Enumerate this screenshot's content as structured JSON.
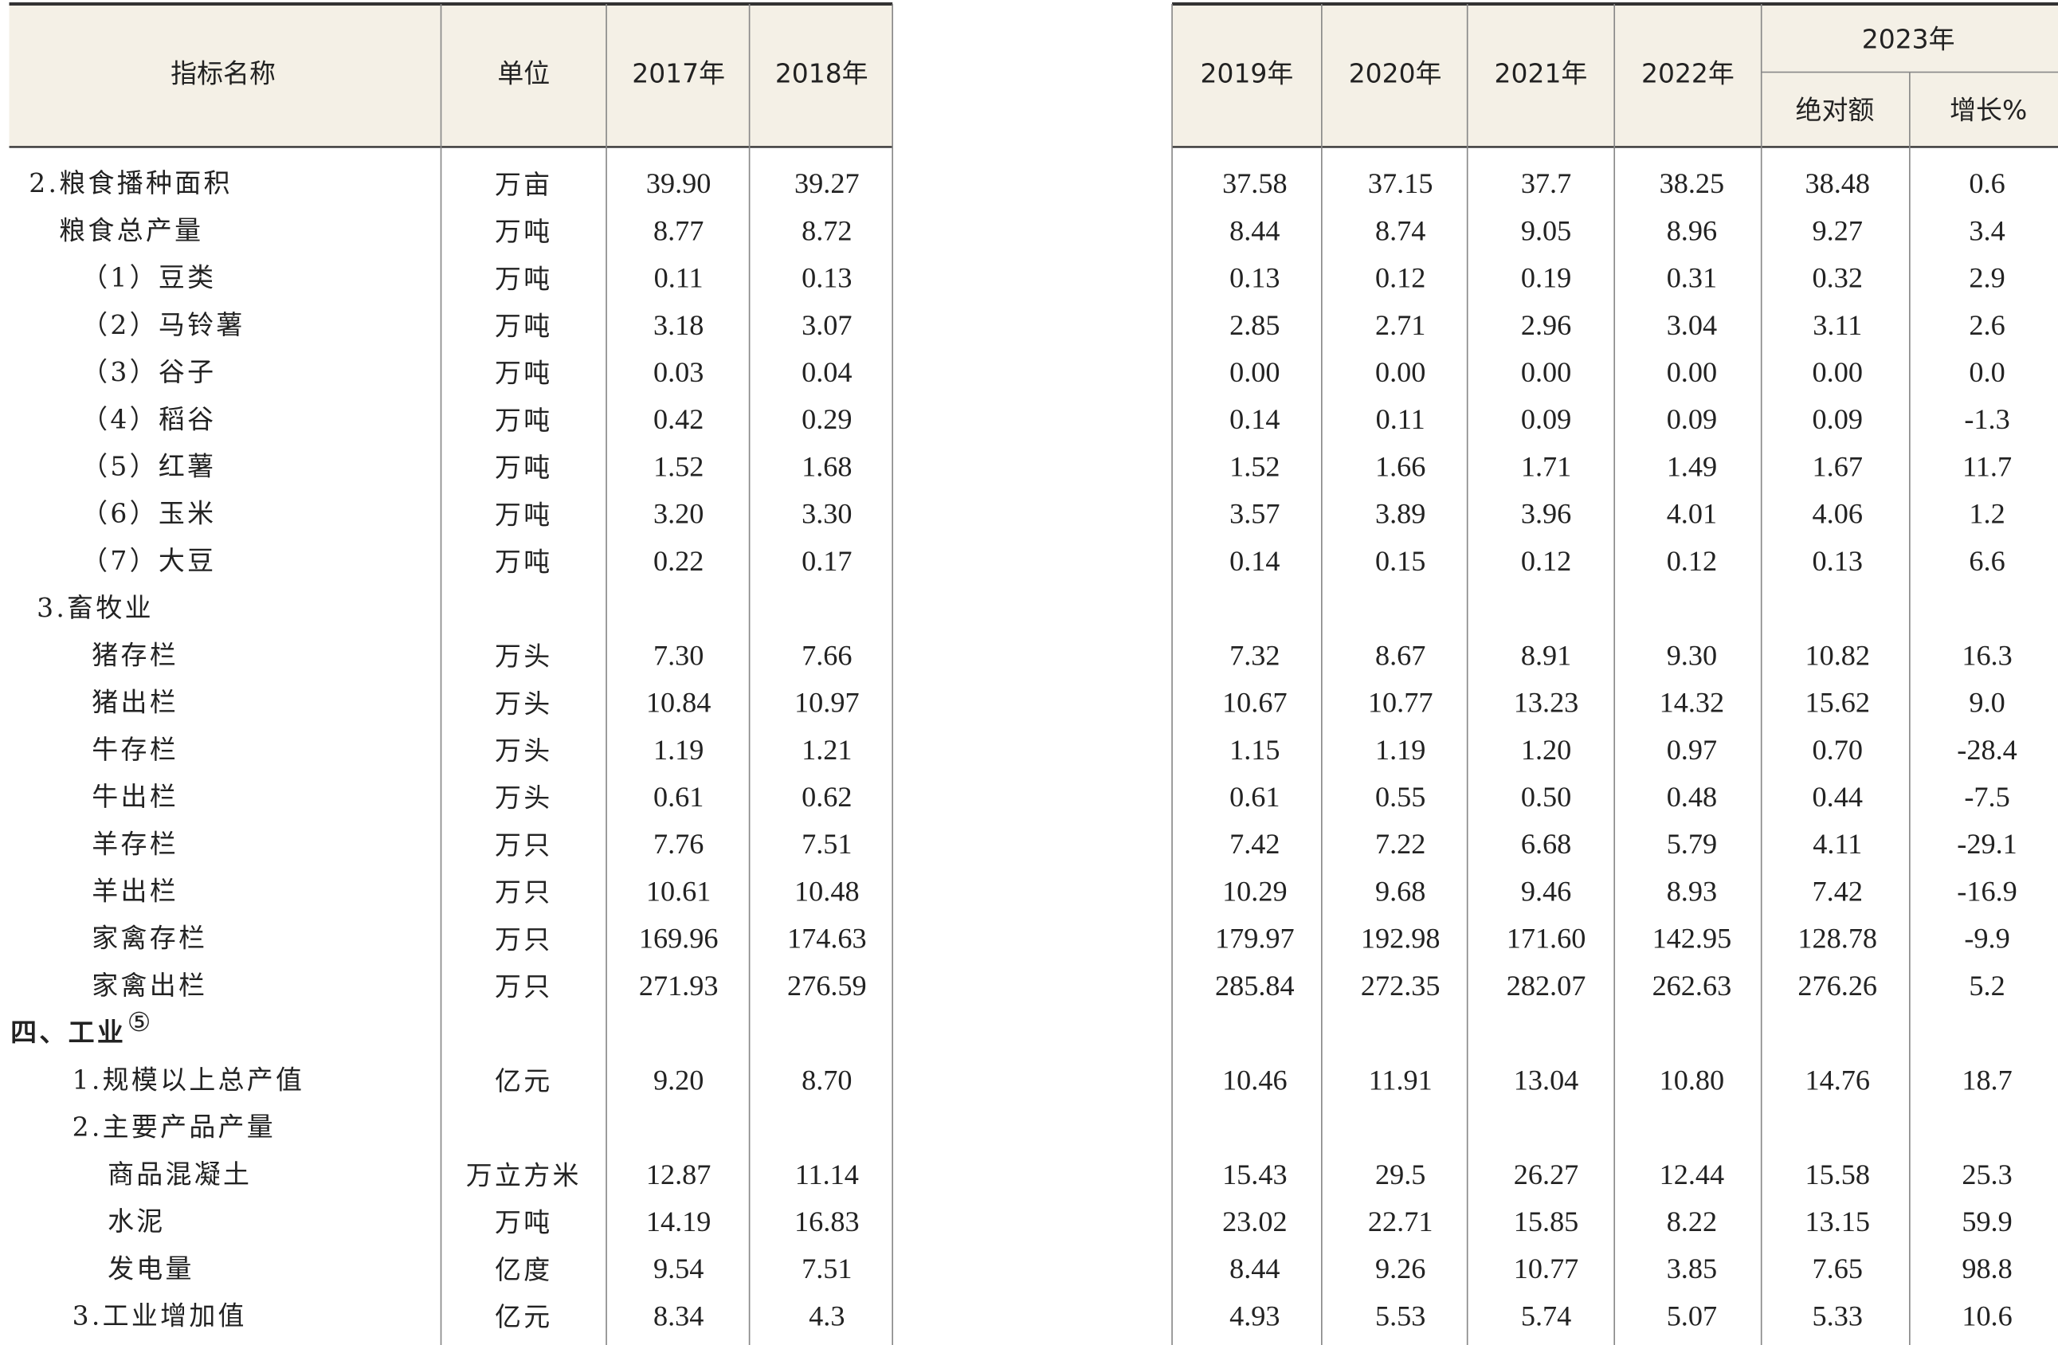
{
  "header": {
    "name": "指标名称",
    "unit": "单位",
    "years": [
      "2017年",
      "2018年",
      "2019年",
      "2020年",
      "2021年",
      "2022年"
    ],
    "group": "2023年",
    "sub": [
      "绝对额",
      "增长%"
    ]
  },
  "table": {
    "rows": [
      {
        "name": "2.粮食播种面积",
        "unit": "万亩",
        "values": [
          "39.90",
          "39.27",
          "37.58",
          "37.15",
          "37.7",
          "38.25",
          "38.48",
          "0.6"
        ]
      },
      {
        "name": "粮食总产量",
        "unit": "万吨",
        "values": [
          "8.77",
          "8.72",
          "8.44",
          "8.74",
          "9.05",
          "8.96",
          "9.27",
          "3.4"
        ]
      },
      {
        "name": "（1）豆类",
        "unit": "万吨",
        "values": [
          "0.11",
          "0.13",
          "0.13",
          "0.12",
          "0.19",
          "0.31",
          "0.32",
          "2.9"
        ]
      },
      {
        "name": "（2）马铃薯",
        "unit": "万吨",
        "values": [
          "3.18",
          "3.07",
          "2.85",
          "2.71",
          "2.96",
          "3.04",
          "3.11",
          "2.6"
        ]
      },
      {
        "name": "（3）谷子",
        "unit": "万吨",
        "values": [
          "0.03",
          "0.04",
          "0.00",
          "0.00",
          "0.00",
          "0.00",
          "0.00",
          "0.0"
        ]
      },
      {
        "name": "（4）稻谷",
        "unit": "万吨",
        "values": [
          "0.42",
          "0.29",
          "0.14",
          "0.11",
          "0.09",
          "0.09",
          "0.09",
          "-1.3"
        ]
      },
      {
        "name": "（5）红薯",
        "unit": "万吨",
        "values": [
          "1.52",
          "1.68",
          "1.52",
          "1.66",
          "1.71",
          "1.49",
          "1.67",
          "11.7"
        ]
      },
      {
        "name": "（6）玉米",
        "unit": "万吨",
        "values": [
          "3.20",
          "3.30",
          "3.57",
          "3.89",
          "3.96",
          "4.01",
          "4.06",
          "1.2"
        ]
      },
      {
        "name": "（7）大豆",
        "unit": "万吨",
        "values": [
          "0.22",
          "0.17",
          "0.14",
          "0.15",
          "0.12",
          "0.12",
          "0.13",
          "6.6"
        ]
      },
      {
        "name": "3.畜牧业"
      },
      {
        "name": "猪存栏",
        "unit": "万头",
        "values": [
          "7.30",
          "7.66",
          "7.32",
          "8.67",
          "8.91",
          "9.30",
          "10.82",
          "16.3"
        ]
      },
      {
        "name": "猪出栏",
        "unit": "万头",
        "values": [
          "10.84",
          "10.97",
          "10.67",
          "10.77",
          "13.23",
          "14.32",
          "15.62",
          "9.0"
        ]
      },
      {
        "name": "牛存栏",
        "unit": "万头",
        "values": [
          "1.19",
          "1.21",
          "1.15",
          "1.19",
          "1.20",
          "0.97",
          "0.70",
          "-28.4"
        ]
      },
      {
        "name": "牛出栏",
        "unit": "万头",
        "values": [
          "0.61",
          "0.62",
          "0.61",
          "0.55",
          "0.50",
          "0.48",
          "0.44",
          "-7.5"
        ]
      },
      {
        "name": "羊存栏",
        "unit": "万只",
        "values": [
          "7.76",
          "7.51",
          "7.42",
          "7.22",
          "6.68",
          "5.79",
          "4.11",
          "-29.1"
        ]
      },
      {
        "name": "羊出栏",
        "unit": "万只",
        "values": [
          "10.61",
          "10.48",
          "10.29",
          "9.68",
          "9.46",
          "8.93",
          "7.42",
          "-16.9"
        ]
      },
      {
        "name": "家禽存栏",
        "unit": "万只",
        "values": [
          "169.96",
          "174.63",
          "179.97",
          "192.98",
          "171.60",
          "142.95",
          "128.78",
          "-9.9"
        ]
      },
      {
        "name": "家禽出栏",
        "unit": "万只",
        "values": [
          "271.93",
          "276.59",
          "285.84",
          "272.35",
          "282.07",
          "262.63",
          "276.26",
          "5.2"
        ]
      },
      {
        "name": "四、工业",
        "footnote": "⑤"
      },
      {
        "name": "1.规模以上总产值",
        "unit": "亿元",
        "values": [
          "9.20",
          "8.70",
          "10.46",
          "11.91",
          "13.04",
          "10.80",
          "14.76",
          "18.7"
        ]
      },
      {
        "name": "2.主要产品产量"
      },
      {
        "name": "商品混凝土",
        "unit": "万立方米",
        "values": [
          "12.87",
          "11.14",
          "15.43",
          "29.5",
          "26.27",
          "12.44",
          "15.58",
          "25.3"
        ]
      },
      {
        "name": "水泥",
        "unit": "万吨",
        "values": [
          "14.19",
          "16.83",
          "23.02",
          "22.71",
          "15.85",
          "8.22",
          "13.15",
          "59.9"
        ]
      },
      {
        "name": "发电量",
        "unit": "亿度",
        "values": [
          "9.54",
          "7.51",
          "8.44",
          "9.26",
          "10.77",
          "3.85",
          "7.65",
          "98.8"
        ]
      },
      {
        "name": "3.工业增加值",
        "unit": "亿元",
        "values": [
          "8.34",
          "4.3",
          "4.93",
          "5.53",
          "5.74",
          "5.07",
          "5.33",
          "10.6"
        ]
      }
    ]
  }
}
